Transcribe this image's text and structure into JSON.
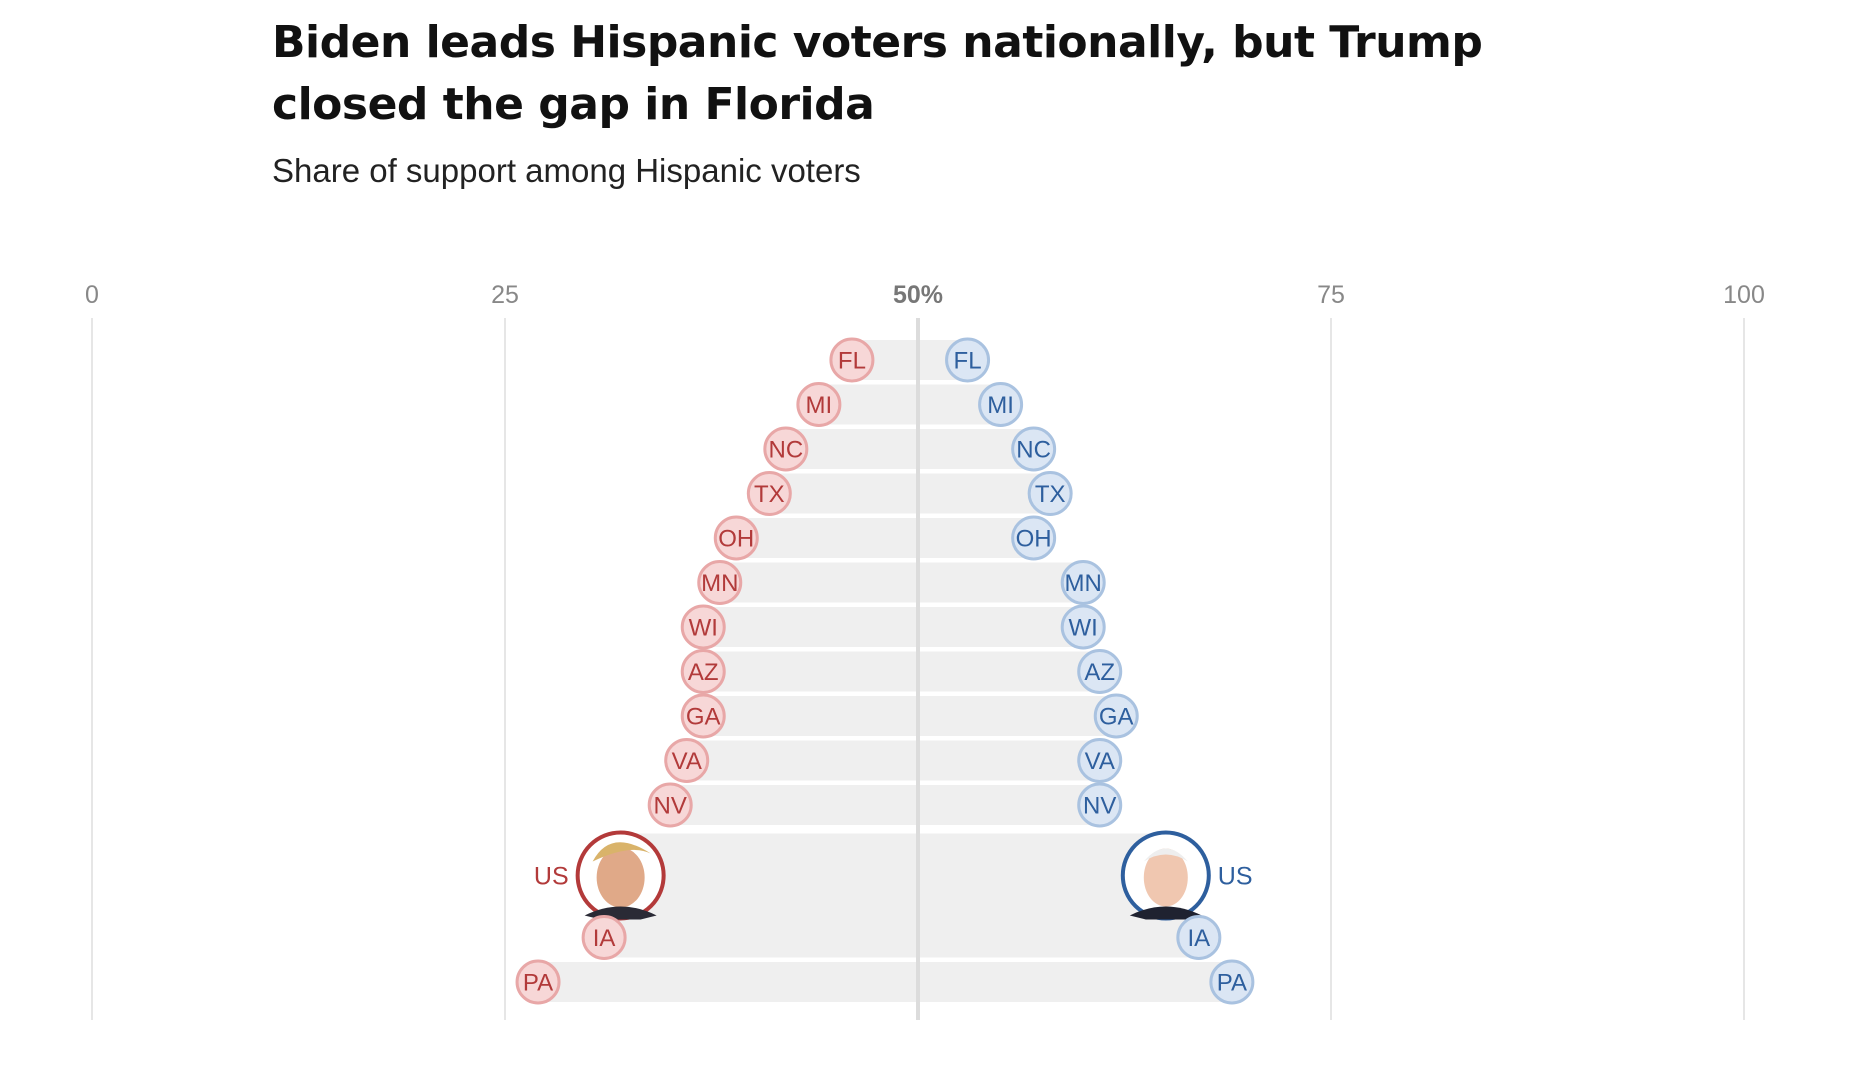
{
  "header": {
    "title": "Biden leads Hispanic voters nationally, but Trump closed the gap in Florida",
    "subtitle": "Share of support among Hispanic voters"
  },
  "colors": {
    "trump_stroke": "#e8a7a7",
    "trump_fill": "#f7d7d7",
    "trump_text": "#b23a3a",
    "biden_stroke": "#a9c2e0",
    "biden_fill": "#dbe6f4",
    "biden_text": "#2e5f9e",
    "band": "#efefef",
    "grid": "#dddddd",
    "center_line": "#dcdcdc",
    "trump_ring": "#b33a3a",
    "biden_ring": "#2e5f9e"
  },
  "chart_data": {
    "type": "scatter",
    "title": "Biden leads Hispanic voters nationally, but Trump closed the gap in Florida",
    "subtitle": "Share of support among Hispanic voters",
    "xlim": [
      0,
      100
    ],
    "ticks": [
      {
        "value": 0,
        "label": "0"
      },
      {
        "value": 25,
        "label": "25"
      },
      {
        "value": 50,
        "label": "50%"
      },
      {
        "value": 75,
        "label": "75"
      },
      {
        "value": 100,
        "label": "100"
      }
    ],
    "rows": [
      {
        "label": "FL",
        "trump": 46,
        "biden": 53
      },
      {
        "label": "MI",
        "trump": 44,
        "biden": 55
      },
      {
        "label": "NC",
        "trump": 42,
        "biden": 57
      },
      {
        "label": "TX",
        "trump": 41,
        "biden": 58
      },
      {
        "label": "OH",
        "trump": 39,
        "biden": 57
      },
      {
        "label": "MN",
        "trump": 38,
        "biden": 60
      },
      {
        "label": "WI",
        "trump": 37,
        "biden": 60
      },
      {
        "label": "AZ",
        "trump": 37,
        "biden": 61
      },
      {
        "label": "GA",
        "trump": 37,
        "biden": 62
      },
      {
        "label": "VA",
        "trump": 36,
        "biden": 61
      },
      {
        "label": "NV",
        "trump": 35,
        "biden": 61
      },
      {
        "label": "US",
        "trump": 32,
        "biden": 65,
        "highlight": true
      },
      {
        "label": "IA",
        "trump": 31,
        "biden": 67
      },
      {
        "label": "PA",
        "trump": 27,
        "biden": 69
      }
    ]
  }
}
